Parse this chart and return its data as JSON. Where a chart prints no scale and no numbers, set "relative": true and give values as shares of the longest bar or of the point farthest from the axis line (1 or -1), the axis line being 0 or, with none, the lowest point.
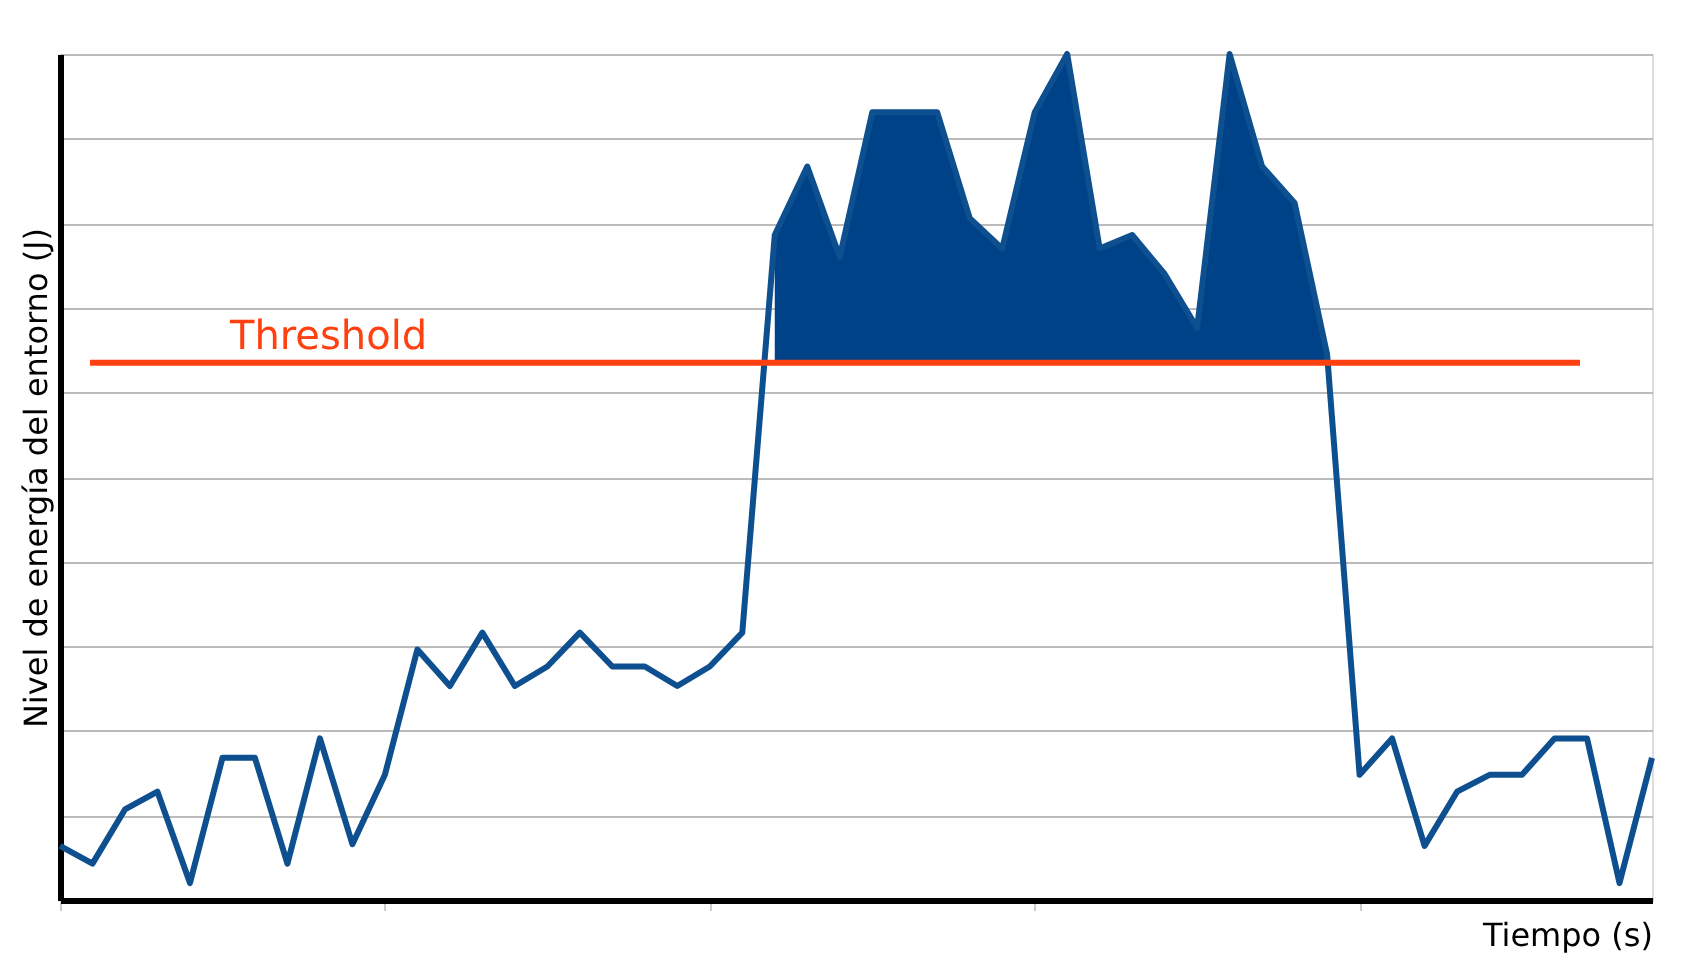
{
  "chart_data": {
    "type": "line",
    "relative": true,
    "xlabel": "Tiempo (s)",
    "ylabel": "Nivel de energía del entorno (J)",
    "grid": "y",
    "tick_labels": false,
    "marker": "none",
    "line_style": "solid",
    "categories": [
      null,
      null,
      null,
      null,
      null,
      null,
      null,
      null,
      null,
      null,
      null,
      null,
      null,
      null,
      null,
      null,
      null,
      null,
      null,
      null,
      null,
      null,
      null,
      null,
      null,
      null,
      null,
      null,
      null,
      null,
      null,
      null,
      null,
      null,
      null,
      null,
      null,
      null,
      null,
      null,
      null,
      null,
      null,
      null,
      null,
      null,
      null,
      null,
      null,
      null
    ],
    "series": [
      {
        "type": "area",
        "color": "#004287",
        "values": [
          null,
          null,
          null,
          null,
          null,
          null,
          null,
          null,
          null,
          null,
          null,
          null,
          null,
          null,
          null,
          null,
          null,
          null,
          null,
          null,
          null,
          null,
          0.786,
          0.867,
          0.76,
          0.931,
          0.931,
          0.931,
          0.806,
          0.77,
          0.931,
          1.0,
          0.77,
          0.786,
          0.74,
          0.676,
          1.0,
          0.867,
          0.824,
          0.645,
          null,
          null,
          null,
          null,
          null,
          null,
          null,
          null,
          null,
          null
        ]
      },
      {
        "color": "#0d4f8f",
        "values": [
          0.064,
          0.043,
          0.107,
          0.128,
          0.02,
          0.168,
          0.168,
          0.043,
          0.191,
          0.066,
          0.148,
          0.296,
          0.253,
          0.316,
          0.253,
          0.276,
          0.316,
          0.276,
          0.276,
          0.253,
          0.276,
          0.316,
          0.786,
          0.867,
          0.76,
          0.931,
          0.931,
          0.931,
          0.806,
          0.77,
          0.931,
          1.0,
          0.77,
          0.786,
          0.74,
          0.676,
          1.0,
          0.867,
          0.824,
          0.645,
          0.148,
          0.191,
          0.064,
          0.128,
          0.148,
          0.148,
          0.191,
          0.191,
          0.02,
          0.168
        ]
      }
    ],
    "ref_lines": [
      {
        "axis": "y",
        "value": 0.635,
        "label": "Threshold",
        "color": "#ff4010",
        "line_style": "solid"
      }
    ]
  }
}
